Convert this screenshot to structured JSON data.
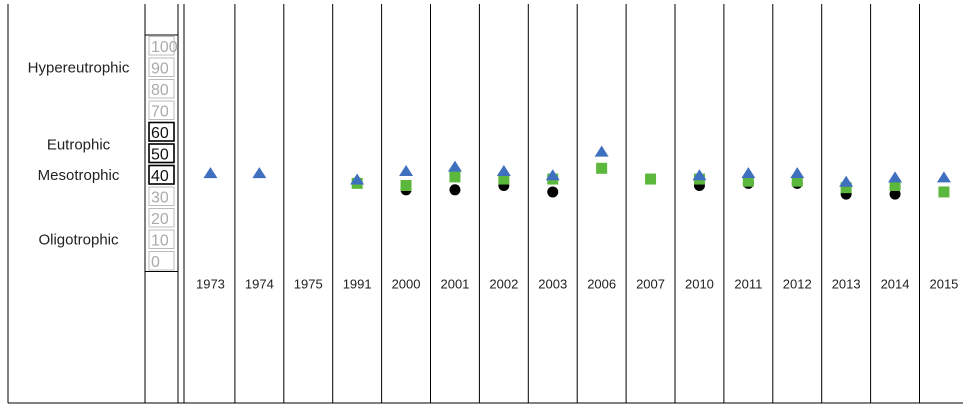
{
  "chart_data": {
    "type": "scatter",
    "title": "",
    "xlabel": "",
    "ylabel": "",
    "ylim": [
      0,
      100
    ],
    "y_ticks": [
      0,
      10,
      20,
      30,
      40,
      50,
      60,
      70,
      80,
      90,
      100
    ],
    "emphasized_ticks": [
      40,
      50,
      60
    ],
    "categories": [
      "1973",
      "1974",
      "1975",
      "1991",
      "2000",
      "2001",
      "2002",
      "2003",
      "2006",
      "2007",
      "2010",
      "2011",
      "2012",
      "2013",
      "2014",
      "2015"
    ],
    "trophic_labels": [
      {
        "label": "Hypereutrophic",
        "y": 90
      },
      {
        "label": "Eutrophic",
        "y": 54
      },
      {
        "label": "Mesotrophic",
        "y": 40
      },
      {
        "label": "Oligotrophic",
        "y": 10
      }
    ],
    "series": [
      {
        "marker": "circle",
        "color": "#000000",
        "values": [
          null,
          null,
          null,
          null,
          33,
          33,
          35,
          32,
          null,
          null,
          35,
          36,
          36,
          31,
          31,
          null
        ]
      },
      {
        "marker": "square",
        "color": "#5cb83c",
        "values": [
          null,
          null,
          null,
          36,
          35,
          39,
          38,
          38,
          43,
          38,
          38,
          37,
          37,
          34,
          35,
          32
        ]
      },
      {
        "marker": "triangle",
        "color": "#3f6fbf",
        "values": [
          null,
          null,
          null,
          38,
          42,
          44,
          42,
          40,
          51,
          null,
          40,
          41,
          41,
          37,
          39,
          39
        ]
      },
      {
        "marker": "triangle",
        "color": "#3f6fbf",
        "outline": false,
        "values": [
          41,
          41,
          null,
          null,
          null,
          null,
          null,
          null,
          null,
          null,
          null,
          null,
          null,
          null,
          null,
          null
        ]
      }
    ]
  }
}
